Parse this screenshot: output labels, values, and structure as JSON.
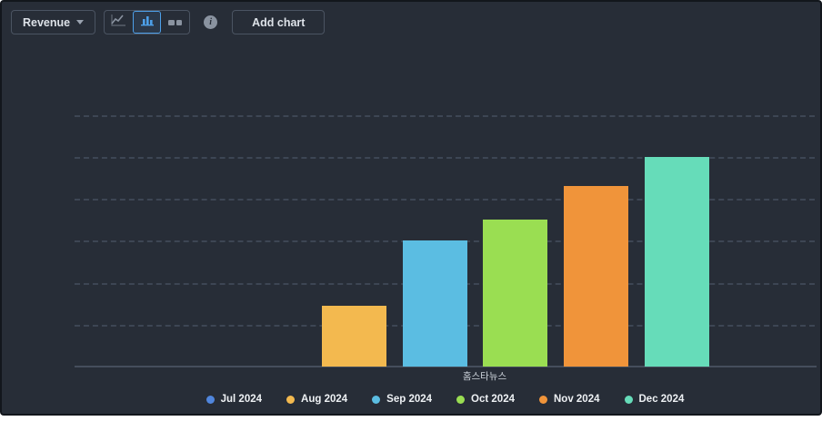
{
  "toolbar": {
    "metric_selector": {
      "label": "Revenue"
    },
    "chart_type_toggle": [
      {
        "name": "line-chart",
        "selected": false
      },
      {
        "name": "bar-chart",
        "selected": true
      },
      {
        "name": "compact-bars",
        "selected": false
      }
    ],
    "info_label": "i",
    "add_chart_label": "Add chart"
  },
  "chart_data": {
    "type": "bar",
    "title": "",
    "categories": [
      "홈스타뉴스"
    ],
    "series": [
      {
        "name": "Jul 2024",
        "value": 0,
        "color": "#5086dd"
      },
      {
        "name": "Aug 2024",
        "value": 29,
        "color": "#f3b94f"
      },
      {
        "name": "Sep 2024",
        "value": 60,
        "color": "#5bbde2"
      },
      {
        "name": "Oct 2024",
        "value": 70,
        "color": "#9ade52"
      },
      {
        "name": "Nov 2024",
        "value": 86,
        "color": "#f0943a"
      },
      {
        "name": "Dec 2024",
        "value": 100,
        "color": "#66dcb9"
      }
    ],
    "xlabel": "",
    "ylabel": "",
    "ylim": [
      0,
      120
    ],
    "gridline_values": [
      20,
      40,
      60,
      80,
      100,
      120
    ],
    "grid": "horizontal-dashed",
    "y_tick_labels_visible": false,
    "legend_position": "bottom"
  },
  "colors": {
    "window_background": "#272d37",
    "button_border": "#4b5462",
    "button_text": "#dde2e8",
    "selected_segment_accent": "#4d9fe8",
    "inactive_icon": "#8a93a0",
    "gridline": "#3d4654",
    "axis_line": "#454e5c",
    "axis_label_text": "#ccd2da",
    "legend_text": "#eef1f4"
  }
}
